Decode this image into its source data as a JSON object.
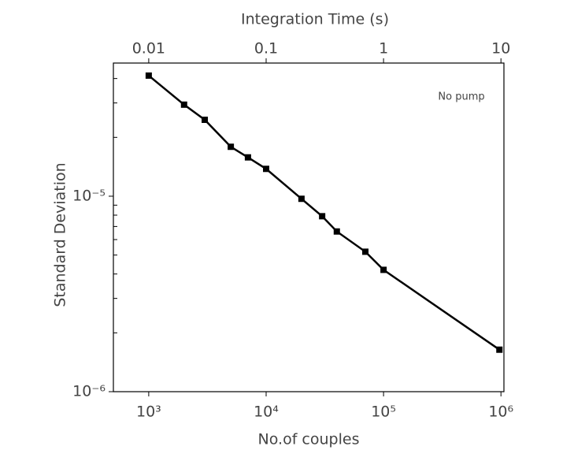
{
  "chart_data": {
    "type": "line",
    "xlabel": "No.of couples",
    "x2label": "Integration Time (s)",
    "ylabel": "Standard Deviation",
    "annotation": "No pump",
    "x": [
      1000,
      2000,
      3000,
      5000,
      7000,
      10000,
      20000,
      30000,
      40000,
      70000,
      100000,
      970000
    ],
    "values": [
      4.14e-05,
      2.94e-05,
      2.46e-05,
      1.79e-05,
      1.58e-05,
      1.38e-05,
      9.7e-06,
      7.9e-06,
      6.6e-06,
      5.2e-06,
      4.2e-06,
      1.64e-06
    ],
    "color": "#000000",
    "xscale": "log",
    "yscale": "log",
    "xlim": [
      500,
      1060000
    ],
    "xticks": [
      {
        "value": 1000,
        "label": "10³"
      },
      {
        "value": 10000,
        "label": "10⁴"
      },
      {
        "value": 100000,
        "label": "10⁵"
      },
      {
        "value": 1000000,
        "label": "10⁶"
      }
    ],
    "x2lim": [
      0.005,
      10.6
    ],
    "x2ticks": [
      0.01,
      0.1,
      1,
      10
    ],
    "ylim": [
      1e-06,
      4.8e-05
    ],
    "yticks": [
      {
        "value": 1e-06,
        "label": "10⁻⁶"
      },
      {
        "value": 1e-05,
        "label": "10⁻⁵"
      }
    ],
    "yminorticks": [
      2e-06,
      3e-06,
      4e-06,
      5e-06,
      6e-06,
      7e-06,
      8e-06,
      9e-06,
      2e-05,
      3e-05,
      4e-05
    ]
  }
}
